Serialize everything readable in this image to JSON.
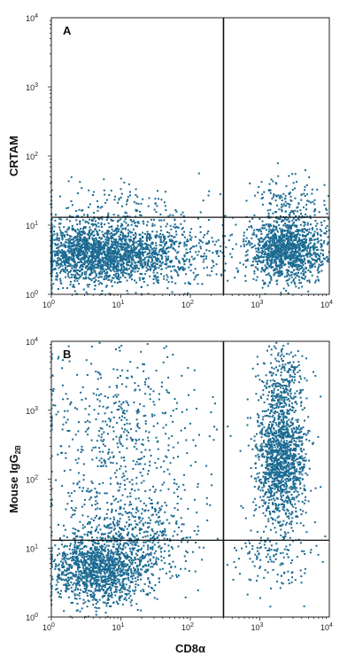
{
  "chart_data": [
    {
      "type": "scatter",
      "panel_label": "A",
      "xlabel": "",
      "ylabel": "CRTAM",
      "x_scale": "log",
      "y_scale": "log",
      "xlim": [
        1,
        10000
      ],
      "ylim": [
        1,
        10000
      ],
      "x_ticks": [
        1,
        10,
        100,
        1000,
        10000
      ],
      "y_ticks": [
        1,
        10,
        100,
        1000,
        10000
      ],
      "x_tick_labels": [
        [
          "10",
          "0"
        ],
        [
          "10",
          "1"
        ],
        [
          "10",
          "2"
        ],
        [
          "10",
          "3"
        ],
        [
          "10",
          "4"
        ]
      ],
      "y_tick_labels": [
        [
          "10",
          "0"
        ],
        [
          "10",
          "1"
        ],
        [
          "10",
          "2"
        ],
        [
          "10",
          "3"
        ],
        [
          "10",
          "4"
        ]
      ],
      "gate": {
        "x": 300,
        "y": 13
      },
      "point_color": "#1b6a92",
      "populations": [
        {
          "x_center": 4,
          "y_center": 4,
          "x_spread_decades": 0.45,
          "y_spread_decades": 0.22,
          "n": 1600
        },
        {
          "x_center": 30,
          "y_center": 4,
          "x_spread_decades": 0.5,
          "y_spread_decades": 0.24,
          "n": 700
        },
        {
          "x_center": 2500,
          "y_center": 4.5,
          "x_spread_decades": 0.28,
          "y_spread_decades": 0.24,
          "n": 1300
        },
        {
          "x_center": 2500,
          "y_center": 25,
          "x_spread_decades": 0.25,
          "y_spread_decades": 0.2,
          "n": 120
        },
        {
          "x_center": 10,
          "y_center": 20,
          "x_spread_decades": 0.7,
          "y_spread_decades": 0.2,
          "n": 120
        }
      ]
    },
    {
      "type": "scatter",
      "panel_label": "B",
      "xlabel": "CD8α",
      "ylabel": "Mouse IgG",
      "ylabel_subscript": "2B",
      "x_scale": "log",
      "y_scale": "log",
      "xlim": [
        1,
        10000
      ],
      "ylim": [
        1,
        10000
      ],
      "x_ticks": [
        1,
        10,
        100,
        1000,
        10000
      ],
      "y_ticks": [
        1,
        10,
        100,
        1000,
        10000
      ],
      "x_tick_labels": [
        [
          "10",
          "0"
        ],
        [
          "10",
          "1"
        ],
        [
          "10",
          "2"
        ],
        [
          "10",
          "3"
        ],
        [
          "10",
          "4"
        ]
      ],
      "y_tick_labels": [
        [
          "10",
          "0"
        ],
        [
          "10",
          "1"
        ],
        [
          "10",
          "2"
        ],
        [
          "10",
          "3"
        ],
        [
          "10",
          "4"
        ]
      ],
      "gate": {
        "x": 300,
        "y": 13
      },
      "point_color": "#1b6a92",
      "populations": [
        {
          "x_center": 5,
          "y_center": 5,
          "x_spread_decades": 0.35,
          "y_spread_decades": 0.25,
          "n": 1300
        },
        {
          "x_center": 15,
          "y_center": 15,
          "x_spread_decades": 0.45,
          "y_spread_decades": 0.35,
          "n": 500
        },
        {
          "x_center": 10,
          "y_center": 400,
          "x_spread_decades": 0.6,
          "y_spread_decades": 0.7,
          "n": 550
        },
        {
          "x_center": 2000,
          "y_center": 200,
          "x_spread_decades": 0.18,
          "y_spread_decades": 0.45,
          "n": 1300
        },
        {
          "x_center": 2200,
          "y_center": 2500,
          "x_spread_decades": 0.18,
          "y_spread_decades": 0.3,
          "n": 250
        },
        {
          "x_center": 1500,
          "y_center": 8,
          "x_spread_decades": 0.3,
          "y_spread_decades": 0.3,
          "n": 150
        }
      ]
    }
  ]
}
